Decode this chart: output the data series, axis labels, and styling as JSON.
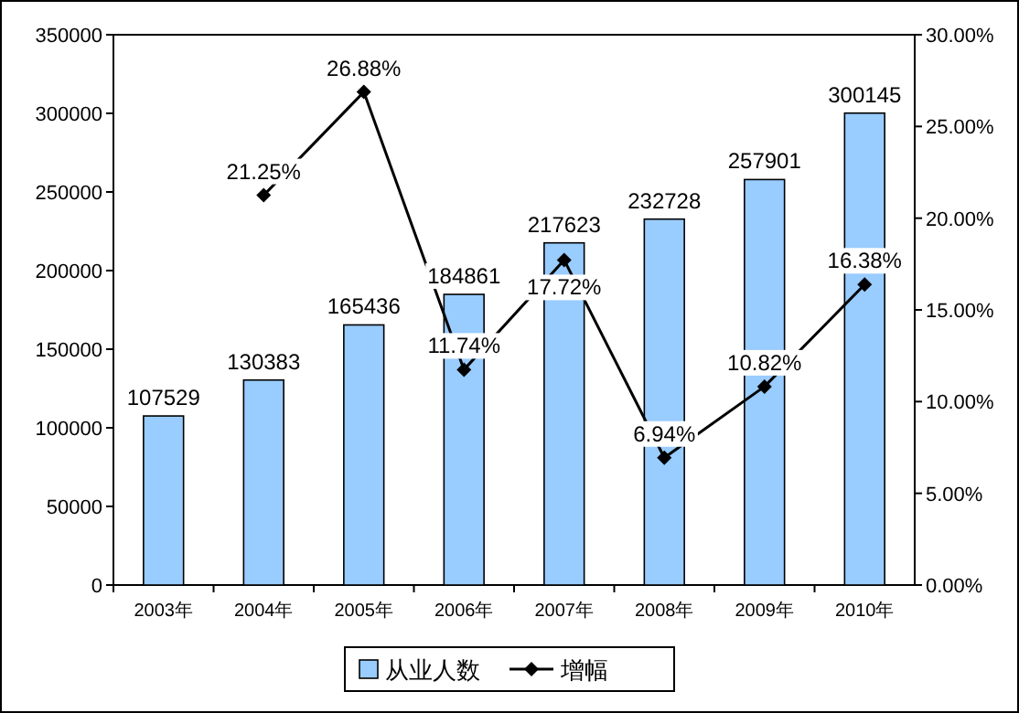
{
  "chart_data": {
    "type": "bar",
    "categories": [
      "2003年",
      "2004年",
      "2005年",
      "2006年",
      "2007年",
      "2008年",
      "2009年",
      "2010年"
    ],
    "series": [
      {
        "name": "从业人数",
        "color": "#99ccff",
        "values": [
          107529,
          130383,
          165436,
          184861,
          217623,
          232728,
          257901,
          300145
        ],
        "value_labels": [
          "107529",
          "130383",
          "165436",
          "184861",
          "217623",
          "232728",
          "257901",
          "300145"
        ]
      },
      {
        "name": "增幅",
        "type": "line",
        "axis": "y2",
        "color": "#000000",
        "marker": "diamond",
        "values": [
          null,
          21.25,
          26.88,
          11.74,
          17.72,
          6.94,
          10.82,
          16.38
        ],
        "value_labels": [
          null,
          "21.25%",
          "26.88%",
          "11.74%",
          "17.72%",
          "6.94%",
          "10.82%",
          "16.38%"
        ]
      }
    ],
    "ylim": [
      0,
      350000
    ],
    "yticks": [
      0,
      50000,
      100000,
      150000,
      200000,
      250000,
      300000,
      350000
    ],
    "y2lim": [
      0,
      30
    ],
    "y2ticks": [
      {
        "value": 0,
        "label": "0.00%"
      },
      {
        "value": 5,
        "label": "5.00%"
      },
      {
        "value": 10,
        "label": "10.00%"
      },
      {
        "value": 15,
        "label": "15.00%"
      },
      {
        "value": 20,
        "label": "20.00%"
      },
      {
        "value": 25,
        "label": "25.00%"
      },
      {
        "value": 30,
        "label": "30.00%"
      }
    ],
    "legend": "bottom",
    "grid": false
  }
}
